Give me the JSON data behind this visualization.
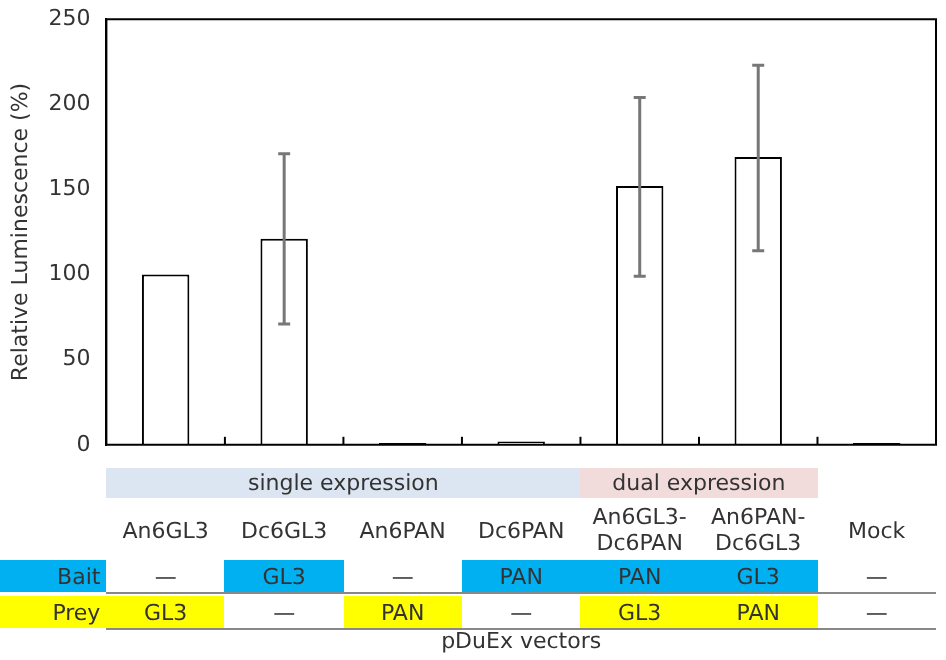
{
  "chart_data": {
    "type": "bar",
    "xlabel": "pDuEx vectors",
    "ylabel": "Relative Luminescence (%)",
    "categories": [
      "An6GL3",
      "Dc6GL3",
      "An6PAN",
      "Dc6PAN",
      "An6GL3-Dc6PAN",
      "An6PAN-Dc6GL3",
      "Mock"
    ],
    "values": [
      100,
      121,
      1,
      2,
      152,
      169,
      1
    ],
    "errors": [
      null,
      [
        71,
        171
      ],
      null,
      null,
      [
        99,
        204
      ],
      [
        114,
        223
      ],
      null
    ],
    "color": "#ffffff",
    "ylim": [
      0,
      250
    ],
    "yticks": [
      0,
      50,
      100,
      150,
      200,
      250
    ],
    "grid": false,
    "legend": false,
    "annotations": [
      "single expression",
      "dual expression",
      "Bait",
      "—",
      "GL3",
      "—",
      "PAN",
      "PAN",
      "GL3",
      "—",
      "Prey",
      "GL3",
      "—",
      "PAN",
      "—",
      "GL3",
      "PAN",
      "—"
    ]
  }
}
